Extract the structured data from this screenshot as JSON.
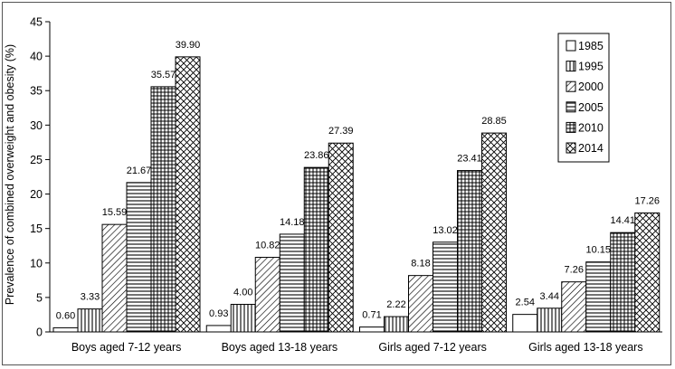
{
  "chart_data": {
    "type": "bar",
    "title": "",
    "xlabel": "",
    "ylabel": "Prevalence of combined overweight and obesity (%)",
    "ylim": [
      0,
      45
    ],
    "yticks": [
      0,
      5,
      10,
      15,
      20,
      25,
      30,
      35,
      40,
      45
    ],
    "grid": false,
    "legend_position": "top-right",
    "categories": [
      "Boys aged 7-12 years",
      "Boys aged 13-18 years",
      "Girls aged 7-12 years",
      "Girls aged 13-18 years"
    ],
    "series": [
      {
        "name": "1985",
        "pattern": "blank",
        "values": [
          0.6,
          0.93,
          0.71,
          2.54
        ],
        "labels": [
          "0.60",
          "0.93",
          "0.71",
          "2.54"
        ]
      },
      {
        "name": "1995",
        "pattern": "vertical-lines",
        "values": [
          3.33,
          4.0,
          2.22,
          3.44
        ],
        "labels": [
          "3.33",
          "4.00",
          "2.22",
          "3.44"
        ]
      },
      {
        "name": "2000",
        "pattern": "diagonal-lines",
        "values": [
          15.59,
          10.82,
          8.18,
          7.26
        ],
        "labels": [
          "15.59",
          "10.82",
          "8.18",
          "7.26"
        ]
      },
      {
        "name": "2005",
        "pattern": "horizontal-lines",
        "values": [
          21.67,
          14.18,
          13.02,
          10.15
        ],
        "labels": [
          "21.67",
          "14.18",
          "13.02",
          "10.15"
        ]
      },
      {
        "name": "2010",
        "pattern": "grid",
        "values": [
          35.57,
          23.86,
          23.41,
          14.41
        ],
        "labels": [
          "35.57",
          "23.86",
          "23.41",
          "14.41"
        ]
      },
      {
        "name": "2014",
        "pattern": "crosshatch",
        "values": [
          39.9,
          27.39,
          28.85,
          17.26
        ],
        "labels": [
          "39.90",
          "27.39",
          "28.85",
          "17.26"
        ]
      }
    ],
    "colors": {
      "stroke": "#000000",
      "background": "#ffffff",
      "frame": "#555555"
    }
  }
}
